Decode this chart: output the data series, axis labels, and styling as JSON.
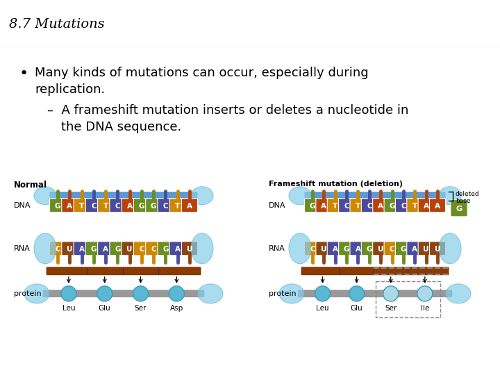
{
  "title": "8.7 Mutations",
  "title_bg_color": "#b8d8d8",
  "slide_bg_color": "#ffffff",
  "title_text_color": "#000000",
  "title_fontsize": 14,
  "bullet_text_1": "Many kinds of mutations can occur, especially during",
  "bullet_text_2": "replication.",
  "sub_bullet_text_1": "–  A frameshift mutation inserts or deletes a nucleotide in",
  "sub_bullet_text_2": "    the DNA sequence.",
  "bullet_fontsize": 13,
  "sub_bullet_fontsize": 13,
  "dna_normal_seq": [
    "G",
    "A",
    "T",
    "C",
    "T",
    "C",
    "A",
    "G",
    "G",
    "C",
    "T",
    "A"
  ],
  "rna_normal_seq": [
    "C",
    "U",
    "A",
    "G",
    "A",
    "G",
    "U",
    "C",
    "C",
    "G",
    "A",
    "U"
  ],
  "protein_normal": [
    "Leu",
    "Glu",
    "Ser",
    "Asp"
  ],
  "dna_frame_seq": [
    "G",
    "A",
    "T",
    "C",
    "T",
    "C",
    "A",
    "G",
    "C",
    "T",
    "A",
    "A"
  ],
  "rna_frame_seq": [
    "C",
    "U",
    "A",
    "G",
    "A",
    "G",
    "U",
    "C",
    "G",
    "A",
    "U",
    "U"
  ],
  "protein_frame": [
    "Leu",
    "Glu",
    "Ser",
    "Ile"
  ],
  "nuc_colors_dna": {
    "G": "#6B8E23",
    "A": "#B8430A",
    "T": "#CC8800",
    "C": "#4B4B9E"
  },
  "nuc_colors_rna": {
    "C": "#CC8800",
    "U": "#8B4513",
    "A": "#4B4B9E",
    "G": "#6B8E23"
  },
  "ribosome_color": "#87CEEB",
  "protein_ball_color": "#5BB8D4",
  "protein_ball_light": "#ADD8E6",
  "strand_bar_color": "#8B3A00",
  "dna_bar_color": "#5B9BD5",
  "protein_line_color": "#999999",
  "normal_label": "Normal",
  "frameshift_label": "Frameshift mutation (deletion)",
  "dna_label": "DNA",
  "rna_label": "RNA",
  "protein_label": "protein",
  "deleted_label": "deleted\nbase",
  "deleted_base": "G"
}
